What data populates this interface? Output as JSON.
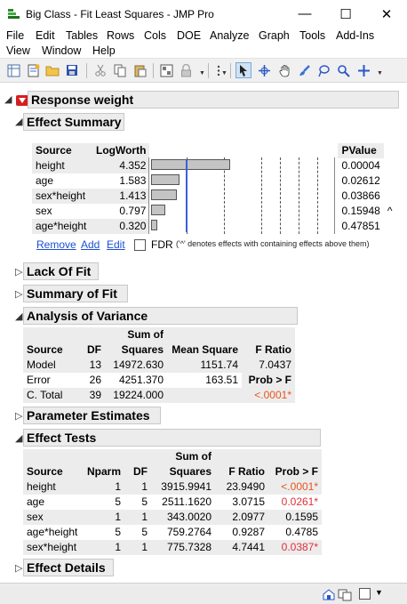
{
  "window": {
    "title": "Big Class - Fit Least Squares - JMP Pro",
    "minimize": "—",
    "maximize": "☐",
    "close": "✕"
  },
  "menu": {
    "row1": [
      "File",
      "Edit",
      "Tables",
      "Rows",
      "Cols",
      "DOE",
      "Analyze",
      "Graph",
      "Tools",
      "Add-Ins"
    ],
    "row2": [
      "View",
      "Window",
      "Help"
    ]
  },
  "report": {
    "response_title": "Response weight",
    "effect_summary": {
      "title": "Effect Summary",
      "headers": [
        "Source",
        "LogWorth",
        "PValue"
      ],
      "rows": [
        {
          "source": "height",
          "logworth": "4.352",
          "pvalue": "0.00004",
          "flag": "",
          "value": 4.352
        },
        {
          "source": "age",
          "logworth": "1.583",
          "pvalue": "0.02612",
          "flag": "",
          "value": 1.583
        },
        {
          "source": "sex*height",
          "logworth": "1.413",
          "pvalue": "0.03866",
          "flag": "",
          "value": 1.413
        },
        {
          "source": "sex",
          "logworth": "0.797",
          "pvalue": "0.15948",
          "flag": "^",
          "value": 0.797
        },
        {
          "source": "age*height",
          "logworth": "0.320",
          "pvalue": "0.47851",
          "flag": "",
          "value": 0.32
        }
      ],
      "remove": "Remove",
      "add": "Add",
      "edit": "Edit",
      "fdr": "FDR",
      "note": "('^' denotes effects with containing effects above them)"
    },
    "lack_of_fit": "Lack Of Fit",
    "summary_of_fit": "Summary of Fit",
    "anova": {
      "title": "Analysis of Variance",
      "headers": {
        "source": "Source",
        "df": "DF",
        "ss_top": "Sum of",
        "ss_bottom": "Squares",
        "ms": "Mean Square",
        "f": "F Ratio"
      },
      "rows": [
        {
          "source": "Model",
          "df": "13",
          "ss": "14972.630",
          "ms": "1151.74",
          "f": "7.0437"
        },
        {
          "source": "Error",
          "df": "26",
          "ss": "4251.370",
          "ms": "163.51",
          "f": "Prob > F"
        },
        {
          "source": "C. Total",
          "df": "39",
          "ss": "19224.000",
          "ms": "",
          "f": "<.0001*"
        }
      ]
    },
    "parameter_estimates": "Parameter Estimates",
    "effect_tests": {
      "title": "Effect Tests",
      "headers": {
        "source": "Source",
        "nparm": "Nparm",
        "df": "DF",
        "ss_top": "Sum of",
        "ss_bottom": "Squares",
        "f": "F Ratio",
        "p": "Prob > F"
      },
      "rows": [
        {
          "source": "height",
          "nparm": "1",
          "df": "1",
          "ss": "3915.9941",
          "f": "23.9490",
          "p": "<.0001*"
        },
        {
          "source": "age",
          "nparm": "5",
          "df": "5",
          "ss": "2511.1620",
          "f": "3.0715",
          "p": "0.0261*"
        },
        {
          "source": "sex",
          "nparm": "1",
          "df": "1",
          "ss": "343.0020",
          "f": "2.0977",
          "p": "0.1595"
        },
        {
          "source": "age*height",
          "nparm": "5",
          "df": "5",
          "ss": "759.2764",
          "f": "0.9287",
          "p": "0.4785"
        },
        {
          "source": "sex*height",
          "nparm": "1",
          "df": "1",
          "ss": "775.7328",
          "f": "4.7441",
          "p": "0.0387*"
        }
      ]
    },
    "effect_details": "Effect Details"
  },
  "colors": {
    "accent_red": "#d41f1f",
    "link_blue": "#1a4fd6",
    "signif_orange": "#e8551c",
    "signif_red": "#e0303c",
    "ref_line": "#3a5fd8"
  }
}
